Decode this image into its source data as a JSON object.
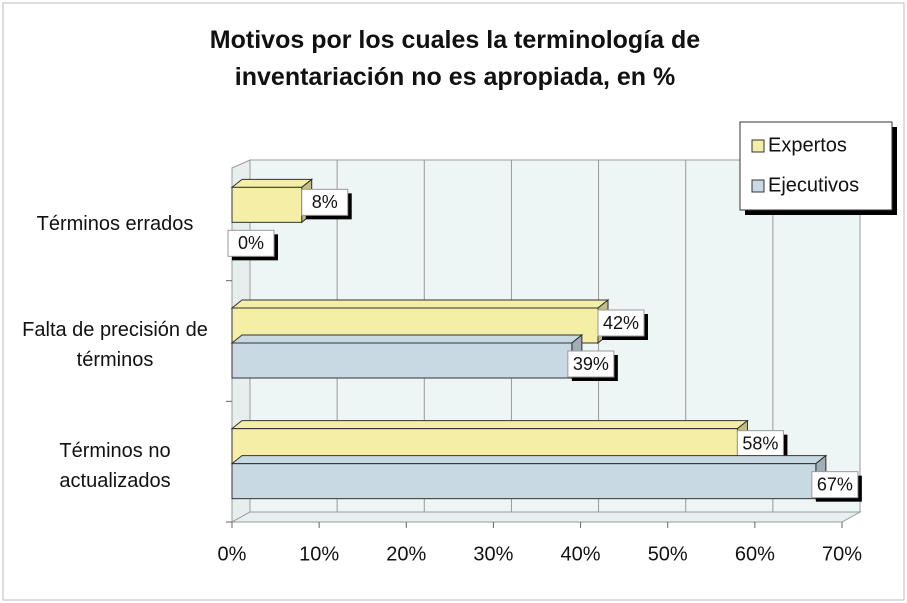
{
  "chart_data": {
    "type": "bar",
    "orientation": "horizontal",
    "title": "Motivos por los cuales la terminología de inventariación no es apropiada, en %",
    "categories": [
      "Términos errados",
      "Falta de precisión de términos",
      "Términos no actualizados"
    ],
    "series": [
      {
        "name": "Expertos",
        "color": "#f4eea6",
        "values": [
          8,
          42,
          58
        ],
        "value_labels": [
          "8%",
          "42%",
          "58%"
        ]
      },
      {
        "name": "Ejecutivos",
        "color": "#c9d9e3",
        "values": [
          0,
          39,
          67
        ],
        "value_labels": [
          "0%",
          "39%",
          "67%"
        ]
      }
    ],
    "xlim": [
      0,
      70
    ],
    "xticks": [
      {
        "value": 0,
        "label": "0%"
      },
      {
        "value": 10,
        "label": "10%"
      },
      {
        "value": 20,
        "label": "20%"
      },
      {
        "value": 30,
        "label": "30%"
      },
      {
        "value": 40,
        "label": "40%"
      },
      {
        "value": 50,
        "label": "50%"
      },
      {
        "value": 60,
        "label": "60%"
      },
      {
        "value": 70,
        "label": "70%"
      }
    ],
    "grid": true,
    "legend": "top-right"
  }
}
